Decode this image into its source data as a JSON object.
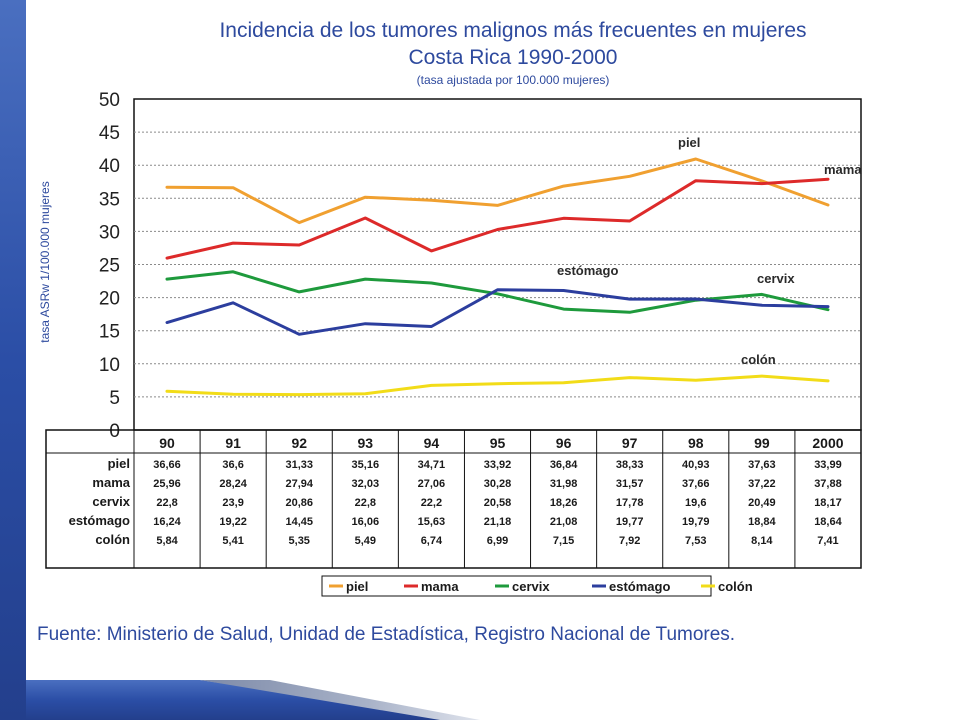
{
  "title": "Incidencia de los tumores malignos más frecuentes en mujeres",
  "subtitle": "Costa Rica 1990-2000",
  "note": "(tasa ajustada por 100.000 mujeres)",
  "source": "Fuente: Ministerio de Salud, Unidad de Estadística, Registro Nacional de Tumores.",
  "colors": {
    "piel": "#f0a030",
    "mama": "#dd2a2a",
    "cervix": "#1e9a3c",
    "estomago": "#2c3e9e",
    "colon": "#f2dc18",
    "title": "#2e4a9e"
  },
  "chart_data": {
    "type": "line",
    "title": "Incidencia de los tumores malignos más frecuentes en mujeres",
    "subtitle": "Costa Rica 1990-2000",
    "ylabel": "tasa ASRw 1/100.000 mujeres",
    "xlabel": "",
    "ylim": [
      0,
      50
    ],
    "yticks": [
      "0",
      "5",
      "10",
      "15",
      "20",
      "25",
      "30",
      "35",
      "40",
      "45",
      "50"
    ],
    "grid": true,
    "legend": "bottom",
    "x": [
      "90",
      "91",
      "92",
      "93",
      "94",
      "95",
      "96",
      "97",
      "98",
      "99",
      "2000"
    ],
    "series": [
      {
        "name": "piel",
        "color": "#f0a030",
        "values": [
          36.66,
          36.6,
          31.33,
          35.16,
          34.71,
          33.92,
          36.84,
          38.33,
          40.93,
          37.63,
          33.99
        ],
        "labels": [
          "36,66",
          "36,6",
          "31,33",
          "35,16",
          "34,71",
          "33,92",
          "36,84",
          "38,33",
          "40,93",
          "37,63",
          "33,99"
        ]
      },
      {
        "name": "mama",
        "color": "#dd2a2a",
        "values": [
          25.96,
          28.24,
          27.94,
          32.03,
          27.06,
          30.28,
          31.98,
          31.57,
          37.66,
          37.22,
          37.88
        ],
        "labels": [
          "25,96",
          "28,24",
          "27,94",
          "32,03",
          "27,06",
          "30,28",
          "31,98",
          "31,57",
          "37,66",
          "37,22",
          "37,88"
        ]
      },
      {
        "name": "cervix",
        "color": "#1e9a3c",
        "values": [
          22.8,
          23.9,
          20.86,
          22.8,
          22.2,
          20.58,
          18.26,
          17.78,
          19.6,
          20.49,
          18.17
        ],
        "labels": [
          "22,8",
          "23,9",
          "20,86",
          "22,8",
          "22,2",
          "20,58",
          "18,26",
          "17,78",
          "19,6",
          "20,49",
          "18,17"
        ]
      },
      {
        "name": "estómago",
        "color": "#2c3e9e",
        "values": [
          16.24,
          19.22,
          14.45,
          16.06,
          15.63,
          21.18,
          21.08,
          19.77,
          19.79,
          18.84,
          18.64
        ],
        "labels": [
          "16,24",
          "19,22",
          "14,45",
          "16,06",
          "15,63",
          "21,18",
          "21,08",
          "19,77",
          "19,79",
          "18,84",
          "18,64"
        ]
      },
      {
        "name": "colón",
        "color": "#f2dc18",
        "values": [
          5.84,
          5.41,
          5.35,
          5.49,
          6.74,
          6.99,
          7.15,
          7.92,
          7.53,
          8.14,
          7.41
        ],
        "labels": [
          "5,84",
          "5,41",
          "5,35",
          "5,49",
          "6,74",
          "6,99",
          "7,15",
          "7,92",
          "7,53",
          "8,14",
          "7,41"
        ]
      }
    ],
    "annotations": [
      "piel",
      "mama",
      "estómago",
      "cervix",
      "colón"
    ]
  }
}
